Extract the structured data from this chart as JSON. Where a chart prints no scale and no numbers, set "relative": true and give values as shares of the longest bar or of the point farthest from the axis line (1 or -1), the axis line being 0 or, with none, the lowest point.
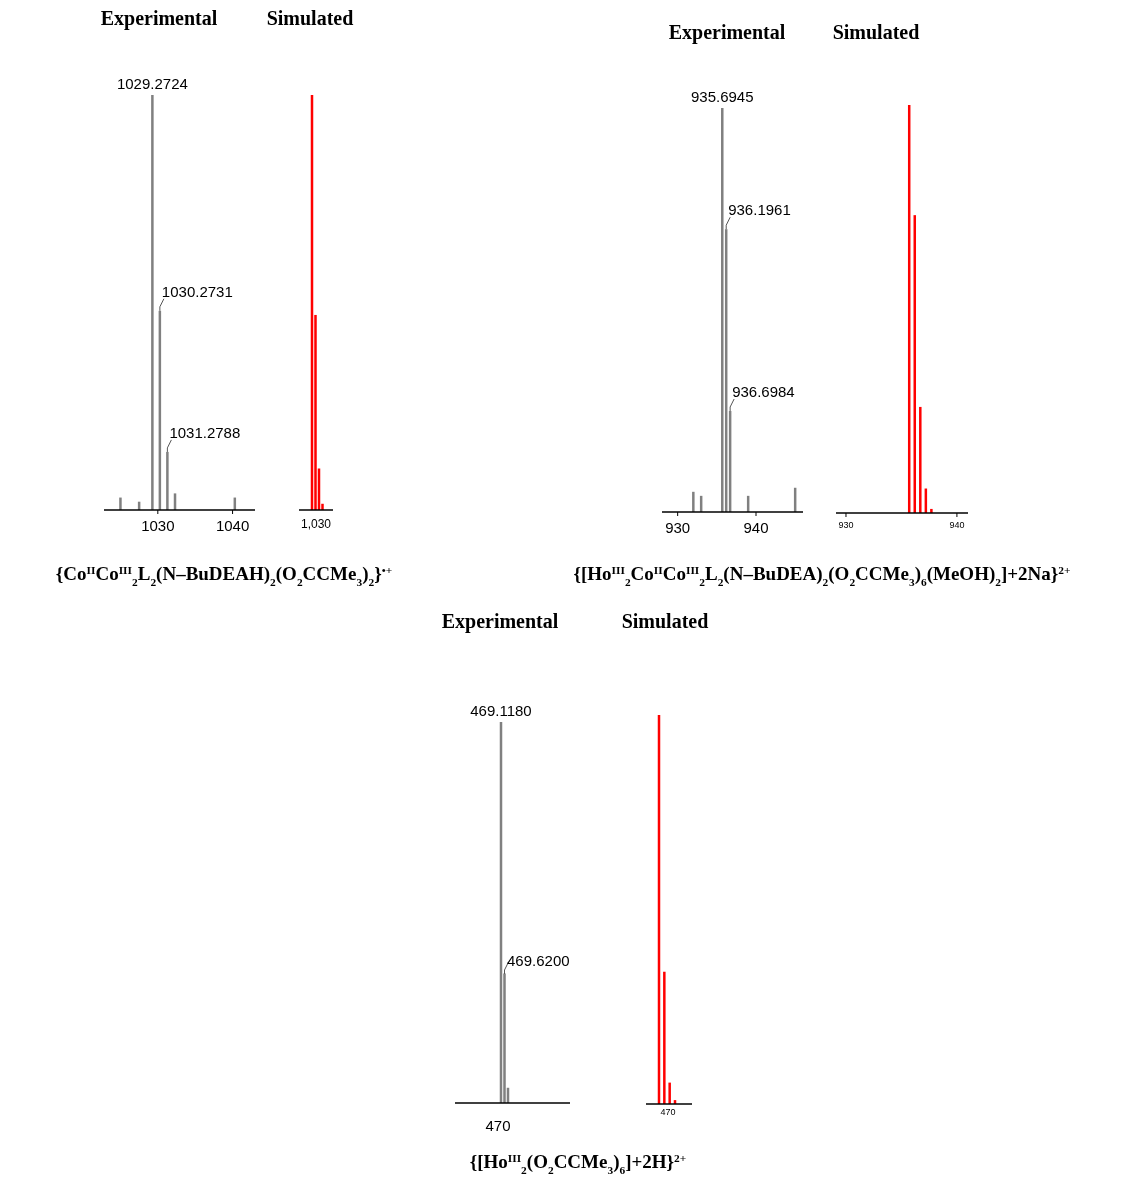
{
  "chart_data": [
    {
      "type": "bar",
      "title": "Experimental",
      "relative": true,
      "color": "#808080",
      "xlim": [
        1022.8,
        1043
      ],
      "xticks": [
        1030,
        1040
      ],
      "x": [
        1025,
        1027.5,
        1029.2724,
        1030.2731,
        1031.2788,
        1032.3,
        1040.3
      ],
      "values": [
        0.03,
        0.02,
        1,
        0.48,
        0.14,
        0.04,
        0.03
      ],
      "annotations": [
        {
          "text": "1029.2724",
          "x": 1029.2724,
          "y": 1
        },
        {
          "text": "1030.2731",
          "x": 1030.2731,
          "y": 0.48
        },
        {
          "text": "1031.2788",
          "x": 1031.2788,
          "y": 0.14
        },
        "{Co$^{II}$Co$^{III}$$_{2}$L$_{2}$(N–BuDEAH)$_{2}$(O$_{2}$CCMe$_{3}$)$_{2}$}$^{•+}$"
      ]
    },
    {
      "type": "bar",
      "title": "Simulated",
      "relative": true,
      "color": "#ff0000",
      "categories": [
        null,
        null,
        null,
        null
      ],
      "values": [
        1,
        0.47,
        0.1,
        0.015
      ],
      "annotations": [
        "1,030"
      ]
    },
    {
      "type": "bar",
      "title": "Experimental",
      "relative": true,
      "color": "#808080",
      "xlim": [
        928,
        946
      ],
      "xticks": [
        930,
        940
      ],
      "x": [
        932,
        933,
        935.6945,
        936.1961,
        936.6984,
        939,
        945
      ],
      "values": [
        0.05,
        0.04,
        1,
        0.7,
        0.25,
        0.04,
        0.06
      ],
      "annotations": [
        {
          "text": "935.6945",
          "x": 935.6945,
          "y": 1
        },
        {
          "text": "936.1961",
          "x": 936.1961,
          "y": 0.7
        },
        {
          "text": "936.6984",
          "x": 936.6984,
          "y": 0.25
        },
        "{[Ho$^{III}$$_{2}$Co$^{II}$Co$^{III}$$_{2}$L$_{2}$(N–BuDEA)$_{2}$(O$_{2}$CCMe$_{3}$)$_{6}$(MeOH)$_{2}$]+2Na}$^{2+}$"
      ]
    },
    {
      "type": "bar",
      "title": "Simulated",
      "relative": true,
      "color": "#ff0000",
      "xlim": [
        929.1,
        941
      ],
      "xticks": [
        930,
        940
      ],
      "x": [
        935.7,
        936.2,
        936.7,
        937.2,
        937.7
      ],
      "values": [
        1,
        0.73,
        0.26,
        0.06,
        0.01
      ]
    },
    {
      "type": "bar",
      "title": "Experimental",
      "relative": true,
      "color": "#808080",
      "categories": [
        null,
        null,
        null
      ],
      "values": [
        1,
        0.34,
        0.04
      ],
      "annotations": [
        "469.1180",
        "469.6200",
        "470",
        "{[Ho$^{III}$$_{2}$(O$_{2}$CCMe$_{3}$)$_{6}$]+2H}$^{2+}$"
      ]
    },
    {
      "type": "bar",
      "title": "Simulated",
      "relative": true,
      "color": "#ff0000",
      "categories": [
        null,
        null,
        null,
        null
      ],
      "values": [
        1,
        0.34,
        0.055,
        0.01
      ],
      "annotations": [
        "470"
      ]
    }
  ]
}
